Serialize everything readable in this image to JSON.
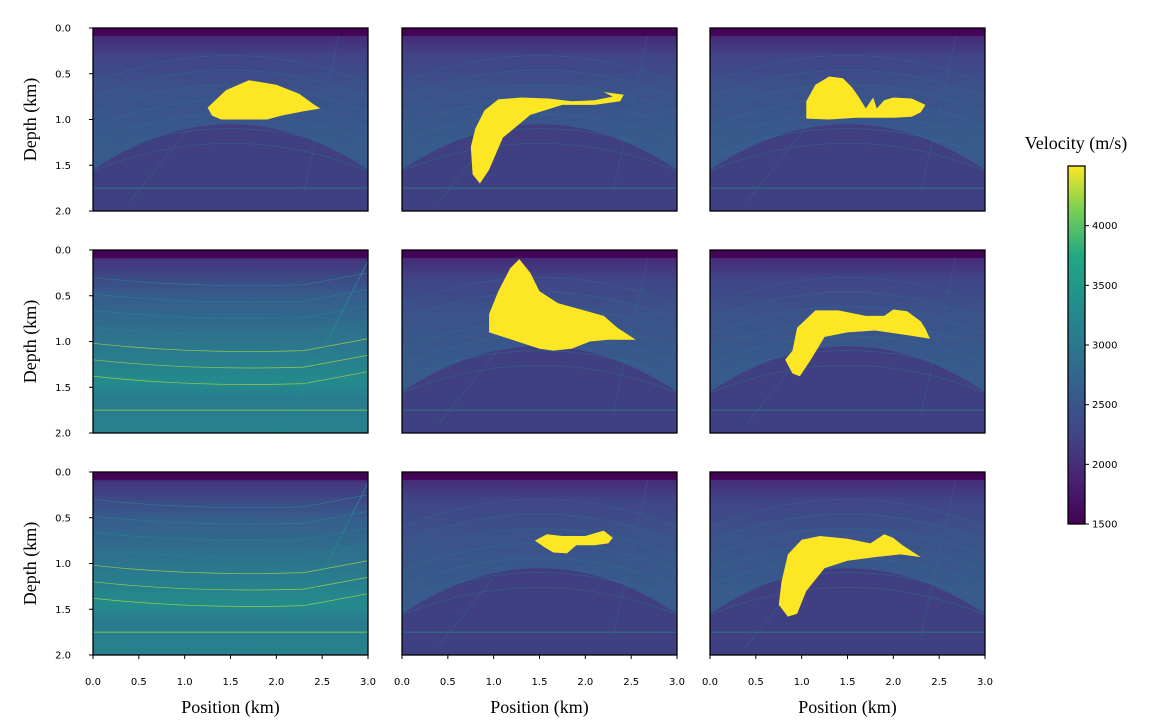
{
  "chart_data": {
    "type": "heatmap",
    "grid": false,
    "layout": "3x3 grid of velocity model panels",
    "xlabel": "Position (km)",
    "ylabel": "Depth (km)",
    "x_range": [
      0.0,
      3.0
    ],
    "y_range": [
      0.0,
      2.0
    ],
    "y_inverted": true,
    "x_ticks": [
      "0.0",
      "0.5",
      "1.0",
      "1.5",
      "2.0",
      "2.5",
      "3.0"
    ],
    "y_ticks": [
      "0.0",
      "0.5",
      "1.0",
      "1.5",
      "2.0"
    ],
    "colorbar": {
      "title": "Velocity (m/s)",
      "colormap": "viridis",
      "range": [
        1500,
        4500
      ],
      "ticks": [
        "1500",
        "2000",
        "2500",
        "3000",
        "3500",
        "4000"
      ]
    },
    "panels": [
      {
        "row": 0,
        "col": 0,
        "background": "dome",
        "salt_body": [
          [
            1.25,
            0.87
          ],
          [
            1.45,
            0.68
          ],
          [
            1.7,
            0.57
          ],
          [
            2.0,
            0.62
          ],
          [
            2.25,
            0.72
          ],
          [
            2.4,
            0.83
          ],
          [
            2.48,
            0.88
          ],
          [
            2.3,
            0.91
          ],
          [
            2.05,
            0.96
          ],
          [
            1.9,
            1.0
          ],
          [
            1.6,
            1.0
          ],
          [
            1.4,
            1.0
          ],
          [
            1.3,
            0.96
          ]
        ]
      },
      {
        "row": 0,
        "col": 1,
        "background": "dome",
        "salt_body": [
          [
            0.8,
            1.1
          ],
          [
            0.9,
            0.9
          ],
          [
            1.05,
            0.78
          ],
          [
            1.3,
            0.76
          ],
          [
            1.6,
            0.77
          ],
          [
            1.85,
            0.8
          ],
          [
            2.1,
            0.79
          ],
          [
            2.3,
            0.75
          ],
          [
            2.2,
            0.7
          ],
          [
            2.42,
            0.73
          ],
          [
            2.38,
            0.8
          ],
          [
            2.1,
            0.84
          ],
          [
            1.75,
            0.84
          ],
          [
            1.4,
            0.95
          ],
          [
            1.1,
            1.2
          ],
          [
            0.95,
            1.55
          ],
          [
            0.85,
            1.7
          ],
          [
            0.77,
            1.6
          ],
          [
            0.75,
            1.3
          ]
        ]
      },
      {
        "row": 0,
        "col": 2,
        "background": "dome",
        "salt_body": [
          [
            1.05,
            0.8
          ],
          [
            1.15,
            0.62
          ],
          [
            1.3,
            0.53
          ],
          [
            1.45,
            0.55
          ],
          [
            1.55,
            0.65
          ],
          [
            1.62,
            0.75
          ],
          [
            1.7,
            0.88
          ],
          [
            1.78,
            0.76
          ],
          [
            1.82,
            0.88
          ],
          [
            1.9,
            0.79
          ],
          [
            2.0,
            0.76
          ],
          [
            2.2,
            0.77
          ],
          [
            2.35,
            0.84
          ],
          [
            2.3,
            0.92
          ],
          [
            2.2,
            0.97
          ],
          [
            2.0,
            0.98
          ],
          [
            1.6,
            0.98
          ],
          [
            1.3,
            1.0
          ],
          [
            1.05,
            0.99
          ]
        ]
      },
      {
        "row": 1,
        "col": 0,
        "background": "fault",
        "salt_body": []
      },
      {
        "row": 1,
        "col": 1,
        "background": "dome",
        "salt_body": [
          [
            0.95,
            0.7
          ],
          [
            1.05,
            0.45
          ],
          [
            1.18,
            0.2
          ],
          [
            1.28,
            0.1
          ],
          [
            1.4,
            0.25
          ],
          [
            1.5,
            0.45
          ],
          [
            1.7,
            0.58
          ],
          [
            1.95,
            0.65
          ],
          [
            2.2,
            0.72
          ],
          [
            2.35,
            0.85
          ],
          [
            2.55,
            0.98
          ],
          [
            2.25,
            0.98
          ],
          [
            2.05,
            1.0
          ],
          [
            1.85,
            1.08
          ],
          [
            1.65,
            1.1
          ],
          [
            1.5,
            1.08
          ],
          [
            1.2,
            0.98
          ],
          [
            0.95,
            0.9
          ]
        ]
      },
      {
        "row": 1,
        "col": 2,
        "background": "dome",
        "salt_body": [
          [
            0.9,
            1.1
          ],
          [
            0.95,
            0.85
          ],
          [
            1.15,
            0.66
          ],
          [
            1.4,
            0.66
          ],
          [
            1.7,
            0.72
          ],
          [
            1.9,
            0.72
          ],
          [
            2.0,
            0.65
          ],
          [
            2.15,
            0.67
          ],
          [
            2.3,
            0.78
          ],
          [
            2.35,
            0.86
          ],
          [
            2.4,
            0.97
          ],
          [
            2.15,
            0.93
          ],
          [
            1.8,
            0.88
          ],
          [
            1.5,
            0.9
          ],
          [
            1.25,
            0.95
          ],
          [
            1.1,
            1.2
          ],
          [
            0.98,
            1.38
          ],
          [
            0.9,
            1.35
          ],
          [
            0.82,
            1.2
          ]
        ]
      },
      {
        "row": 2,
        "col": 0,
        "background": "fault",
        "salt_body": []
      },
      {
        "row": 2,
        "col": 1,
        "background": "dome",
        "salt_body": [
          [
            1.45,
            0.75
          ],
          [
            1.58,
            0.68
          ],
          [
            1.75,
            0.7
          ],
          [
            2.0,
            0.7
          ],
          [
            2.2,
            0.64
          ],
          [
            2.3,
            0.72
          ],
          [
            2.25,
            0.78
          ],
          [
            2.1,
            0.8
          ],
          [
            1.9,
            0.8
          ],
          [
            1.8,
            0.89
          ],
          [
            1.65,
            0.88
          ],
          [
            1.55,
            0.82
          ]
        ]
      },
      {
        "row": 2,
        "col": 2,
        "background": "dome",
        "salt_body": [
          [
            0.78,
            1.2
          ],
          [
            0.85,
            0.9
          ],
          [
            1.0,
            0.74
          ],
          [
            1.2,
            0.7
          ],
          [
            1.5,
            0.73
          ],
          [
            1.75,
            0.78
          ],
          [
            1.9,
            0.68
          ],
          [
            2.0,
            0.72
          ],
          [
            2.1,
            0.8
          ],
          [
            2.3,
            0.93
          ],
          [
            2.08,
            0.9
          ],
          [
            1.8,
            0.93
          ],
          [
            1.5,
            0.97
          ],
          [
            1.25,
            1.05
          ],
          [
            1.05,
            1.3
          ],
          [
            0.95,
            1.55
          ],
          [
            0.85,
            1.58
          ],
          [
            0.75,
            1.45
          ]
        ]
      }
    ]
  }
}
